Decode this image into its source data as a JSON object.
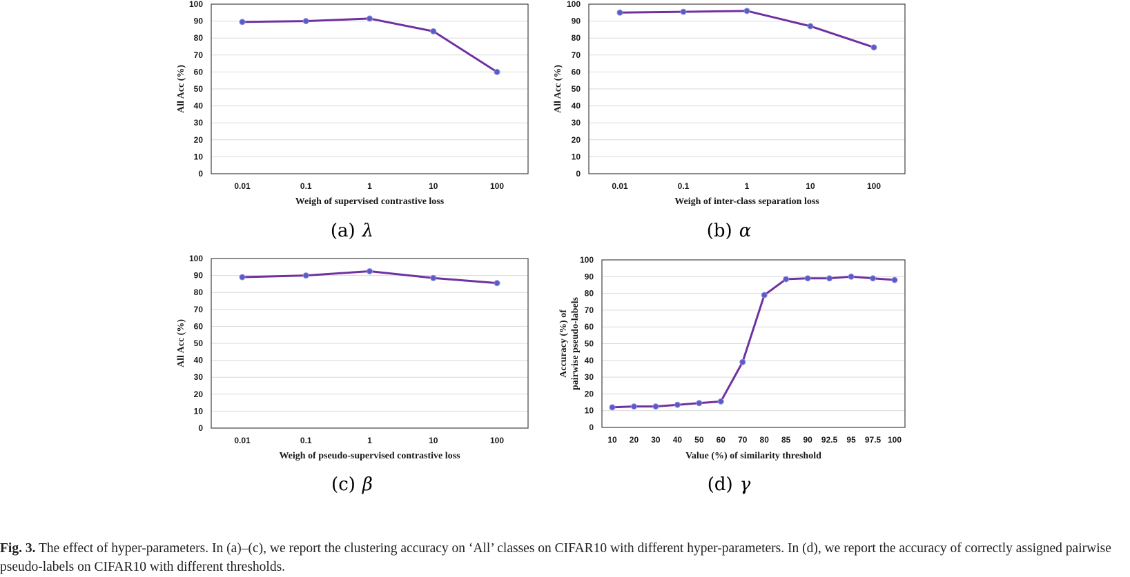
{
  "chart_data": [
    {
      "id": "a",
      "type": "line",
      "categories": [
        "0.01",
        "0.1",
        "1",
        "10",
        "100"
      ],
      "values": [
        89.5,
        90,
        91.5,
        84,
        60
      ],
      "xlabel": "Weigh of supervised contrastive loss",
      "ylabel": "All Acc (%)",
      "ylim": [
        0,
        100
      ],
      "yticks": [
        "0",
        "10",
        "20",
        "30",
        "40",
        "50",
        "60",
        "70",
        "80",
        "90",
        "100"
      ],
      "grid": true,
      "caption_label": "(a)",
      "caption_symbol": "λ"
    },
    {
      "id": "b",
      "type": "line",
      "categories": [
        "0.01",
        "0.1",
        "1",
        "10",
        "100"
      ],
      "values": [
        95,
        95.5,
        96,
        87,
        74.5
      ],
      "xlabel": "Weigh of inter-class separation loss",
      "ylabel": "All Acc (%)",
      "ylim": [
        0,
        100
      ],
      "yticks": [
        "0",
        "10",
        "20",
        "30",
        "40",
        "50",
        "60",
        "70",
        "80",
        "90",
        "100"
      ],
      "grid": true,
      "caption_label": "(b)",
      "caption_symbol": "α"
    },
    {
      "id": "c",
      "type": "line",
      "categories": [
        "0.01",
        "0.1",
        "1",
        "10",
        "100"
      ],
      "values": [
        89,
        90,
        92.5,
        88.5,
        85.5
      ],
      "xlabel": "Weigh of pseudo-supervised contrastive loss",
      "ylabel": "All Acc (%)",
      "ylim": [
        0,
        100
      ],
      "yticks": [
        "0",
        "10",
        "20",
        "30",
        "40",
        "50",
        "60",
        "70",
        "80",
        "90",
        "100"
      ],
      "grid": true,
      "caption_label": "(c)",
      "caption_symbol": "β"
    },
    {
      "id": "d",
      "type": "line",
      "categories": [
        "10",
        "20",
        "30",
        "40",
        "50",
        "60",
        "70",
        "80",
        "85",
        "90",
        "92.5",
        "95",
        "97.5",
        "100"
      ],
      "values": [
        12,
        12.5,
        12.5,
        13.5,
        14.5,
        15.5,
        39,
        79,
        88.5,
        89,
        89,
        90,
        89,
        88
      ],
      "xlabel": "Value (%) of similarity threshold",
      "ylabel": [
        "Accuracy (%) of",
        "pairwise pseudo-labels"
      ],
      "ylim": [
        0,
        100
      ],
      "yticks": [
        "0",
        "10",
        "20",
        "30",
        "40",
        "50",
        "60",
        "70",
        "80",
        "90",
        "100"
      ],
      "grid": true,
      "caption_label": "(d)",
      "caption_symbol": "γ"
    }
  ],
  "style": {
    "line_color": "#7030a0",
    "marker_color": "#5b5bc8",
    "grid_color": "#d9d9d9",
    "frame_color": "#404040"
  },
  "caption": {
    "fig_label": "Fig. 3.",
    "text": "The effect of hyper-parameters. In (a)–(c), we report the clustering accuracy on ‘All’ classes on CIFAR10 with different hyper-parameters. In (d), we report the accuracy of correctly assigned pairwise pseudo-labels on CIFAR10 with different thresholds."
  }
}
